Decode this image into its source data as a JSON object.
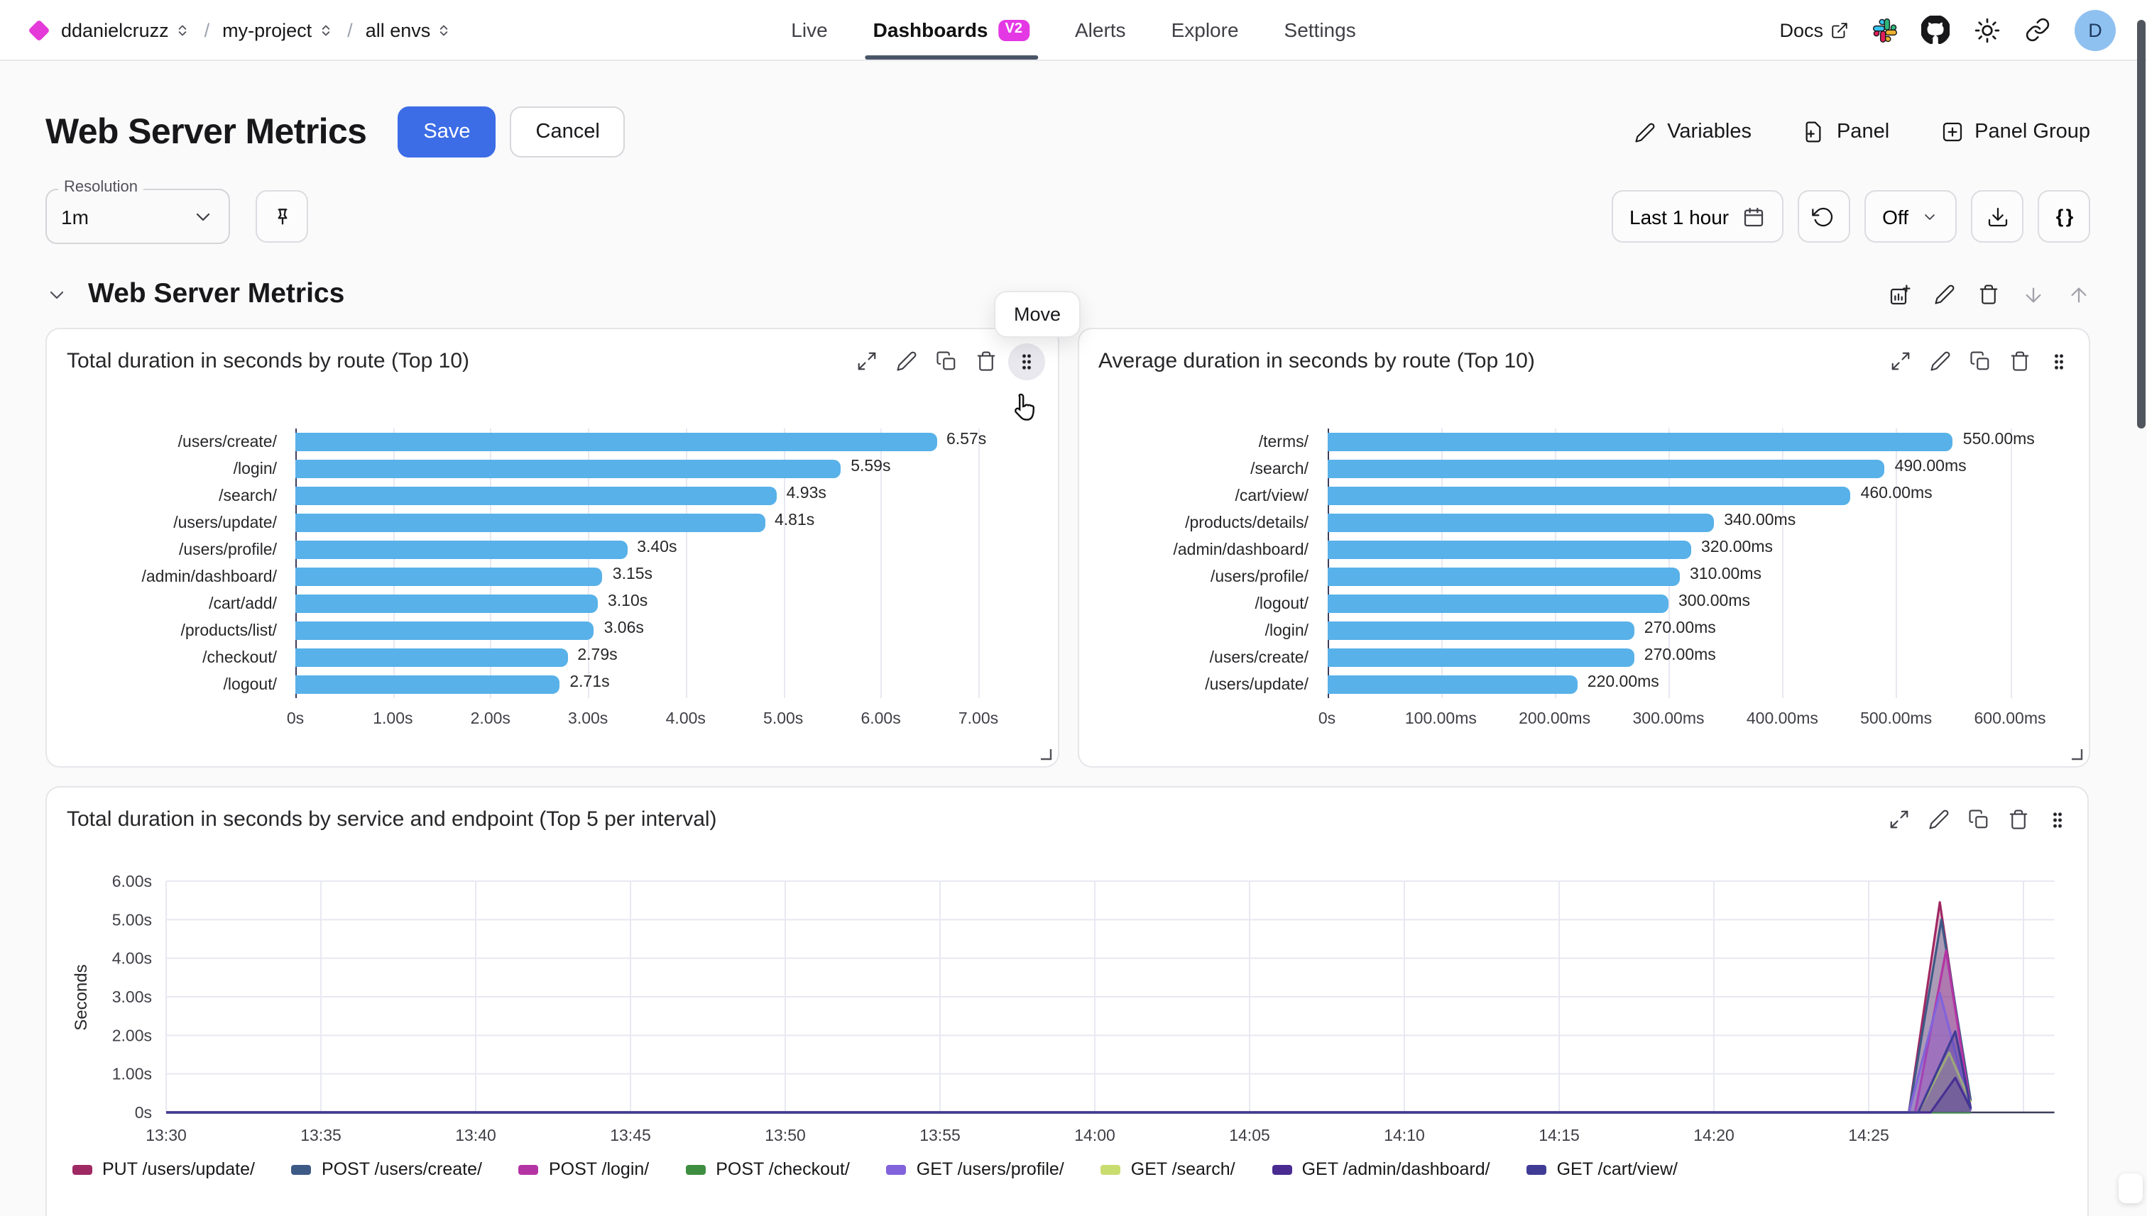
{
  "nav": {
    "breadcrumb": [
      {
        "label": "ddanielcruzz"
      },
      {
        "label": "my-project"
      },
      {
        "label": "all envs"
      }
    ],
    "tabs": [
      {
        "label": "Live",
        "active": false
      },
      {
        "label": "Dashboards",
        "active": true,
        "badge": "V2"
      },
      {
        "label": "Alerts",
        "active": false
      },
      {
        "label": "Explore",
        "active": false
      },
      {
        "label": "Settings",
        "active": false
      }
    ],
    "docs_label": "Docs",
    "avatar_letter": "D"
  },
  "header": {
    "title": "Web Server Metrics",
    "save_label": "Save",
    "cancel_label": "Cancel",
    "actions": {
      "variables": "Variables",
      "panel": "Panel",
      "panel_group": "Panel Group"
    }
  },
  "toolbar": {
    "resolution_label": "Resolution",
    "resolution_value": "1m",
    "time_range": "Last 1 hour",
    "refresh_mode": "Off",
    "braces_label": "{ }"
  },
  "section": {
    "title": "Web Server Metrics",
    "move_tooltip": "Move"
  },
  "colors": {
    "accent_magenta": "#e438e4",
    "primary_blue": "#3c6ce6",
    "bar_blue": "#58b1e8",
    "tab_underline": "#4a5568"
  },
  "chart_data": [
    {
      "type": "bar",
      "orientation": "horizontal",
      "title": "Total duration in seconds by route (Top 10)",
      "xlabel": "",
      "ylabel": "",
      "max": 7,
      "tick_labels": [
        "0s",
        "1.00s",
        "2.00s",
        "3.00s",
        "4.00s",
        "5.00s",
        "6.00s",
        "7.00s"
      ],
      "rows": [
        {
          "route": "/users/create/",
          "value": 6.57,
          "label": "6.57s"
        },
        {
          "route": "/login/",
          "value": 5.59,
          "label": "5.59s"
        },
        {
          "route": "/search/",
          "value": 4.93,
          "label": "4.93s"
        },
        {
          "route": "/users/update/",
          "value": 4.81,
          "label": "4.81s"
        },
        {
          "route": "/users/profile/",
          "value": 3.4,
          "label": "3.40s"
        },
        {
          "route": "/admin/dashboard/",
          "value": 3.15,
          "label": "3.15s"
        },
        {
          "route": "/cart/add/",
          "value": 3.1,
          "label": "3.10s"
        },
        {
          "route": "/products/list/",
          "value": 3.06,
          "label": "3.06s"
        },
        {
          "route": "/checkout/",
          "value": 2.79,
          "label": "2.79s"
        },
        {
          "route": "/logout/",
          "value": 2.71,
          "label": "2.71s"
        }
      ]
    },
    {
      "type": "bar",
      "orientation": "horizontal",
      "title": "Average duration in seconds by route (Top 10)",
      "xlabel": "",
      "ylabel": "",
      "max": 600,
      "tick_labels": [
        "0s",
        "100.00ms",
        "200.00ms",
        "300.00ms",
        "400.00ms",
        "500.00ms",
        "600.00ms"
      ],
      "rows": [
        {
          "route": "/terms/",
          "value": 550,
          "label": "550.00ms"
        },
        {
          "route": "/search/",
          "value": 490,
          "label": "490.00ms"
        },
        {
          "route": "/cart/view/",
          "value": 460,
          "label": "460.00ms"
        },
        {
          "route": "/products/details/",
          "value": 340,
          "label": "340.00ms"
        },
        {
          "route": "/admin/dashboard/",
          "value": 320,
          "label": "320.00ms"
        },
        {
          "route": "/users/profile/",
          "value": 310,
          "label": "310.00ms"
        },
        {
          "route": "/logout/",
          "value": 300,
          "label": "300.00ms"
        },
        {
          "route": "/login/",
          "value": 270,
          "label": "270.00ms"
        },
        {
          "route": "/users/create/",
          "value": 270,
          "label": "270.00ms"
        },
        {
          "route": "/users/update/",
          "value": 220,
          "label": "220.00ms"
        }
      ]
    },
    {
      "type": "area",
      "title": "Total duration in seconds by service and endpoint (Top 5 per interval)",
      "xlabel": "",
      "ylabel": "Seconds",
      "ylim": [
        0,
        6
      ],
      "yticks": [
        "0s",
        "1.00s",
        "2.00s",
        "3.00s",
        "4.00s",
        "5.00s",
        "6.00s"
      ],
      "xticks": [
        "13:30",
        "13:35",
        "13:40",
        "13:45",
        "13:50",
        "13:55",
        "14:00",
        "14:05",
        "14:10",
        "14:15",
        "14:20",
        "14:25"
      ],
      "x_minutes_domain": [
        0,
        61
      ],
      "series": [
        {
          "name": "PUT /users/update/",
          "color": "#9f2963",
          "points": [
            [
              0,
              0
            ],
            [
              56.3,
              0
            ],
            [
              57.3,
              5.45
            ],
            [
              58.3,
              0.05
            ]
          ]
        },
        {
          "name": "POST /users/create/",
          "color": "#3d5a87",
          "points": [
            [
              0,
              0
            ],
            [
              56.3,
              0
            ],
            [
              57.35,
              5.0
            ],
            [
              58.3,
              0.3
            ]
          ]
        },
        {
          "name": "POST /login/",
          "color": "#b534a4",
          "points": [
            [
              0,
              0
            ],
            [
              56.5,
              0
            ],
            [
              57.5,
              4.2
            ],
            [
              58.3,
              0.1
            ]
          ]
        },
        {
          "name": "POST /checkout/",
          "color": "#3e8e41",
          "points": [
            [
              0,
              0
            ],
            [
              58.3,
              0
            ]
          ]
        },
        {
          "name": "GET /users/profile/",
          "color": "#8163db",
          "points": [
            [
              0,
              0
            ],
            [
              56.3,
              0
            ],
            [
              57.3,
              3.1
            ],
            [
              58.3,
              0.05
            ]
          ]
        },
        {
          "name": "GET /search/",
          "color": "#c9dc6f",
          "points": [
            [
              0,
              0
            ],
            [
              56.6,
              0
            ],
            [
              57.6,
              1.55
            ],
            [
              58.3,
              0.25
            ]
          ]
        },
        {
          "name": "GET /admin/dashboard/",
          "color": "#492b92",
          "points": [
            [
              0,
              0
            ],
            [
              57.0,
              0
            ],
            [
              57.8,
              0.9
            ],
            [
              58.3,
              0.1
            ]
          ]
        },
        {
          "name": "GET /cart/view/",
          "color": "#403c95",
          "points": [
            [
              0,
              0
            ],
            [
              56.6,
              0
            ],
            [
              57.8,
              2.1
            ],
            [
              58.3,
              0.1
            ]
          ]
        }
      ]
    }
  ]
}
